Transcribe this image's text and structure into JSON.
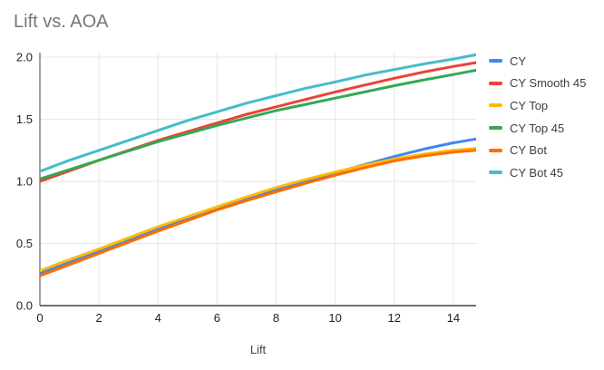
{
  "chart_data": {
    "type": "line",
    "title": "Lift vs. AOA",
    "xlabel": "Lift",
    "ylabel": "",
    "legend_position": "right",
    "grid": true,
    "xlim": [
      0,
      14.77
    ],
    "ylim": [
      0,
      2.0
    ],
    "x_tick_labels": [
      "0",
      "2",
      "4",
      "6",
      "8",
      "10",
      "12",
      "14"
    ],
    "x_ticks": [
      0,
      2,
      4,
      6,
      8,
      10,
      12,
      14
    ],
    "y_tick_labels": [
      "0.0",
      "0.5",
      "1.0",
      "1.5",
      "2.0"
    ],
    "y_ticks": [
      0,
      0.5,
      1.0,
      1.5,
      2.0
    ],
    "x": [
      0,
      1,
      2,
      3,
      4,
      5,
      6,
      7,
      8,
      9,
      10,
      11,
      12,
      13,
      14,
      15
    ],
    "series": [
      {
        "name": "CY",
        "color": "#4285F4",
        "values": [
          0.26,
          0.35,
          0.44,
          0.53,
          0.615,
          0.7,
          0.78,
          0.86,
          0.935,
          1.005,
          1.07,
          1.135,
          1.2,
          1.26,
          1.31,
          1.35
        ]
      },
      {
        "name": "CY Smooth 45",
        "color": "#EA4335",
        "values": [
          1.0,
          1.085,
          1.17,
          1.25,
          1.33,
          1.4,
          1.47,
          1.54,
          1.6,
          1.66,
          1.72,
          1.775,
          1.83,
          1.88,
          1.925,
          1.965
        ]
      },
      {
        "name": "CY Top",
        "color": "#FBBC04",
        "values": [
          0.28,
          0.37,
          0.455,
          0.545,
          0.635,
          0.715,
          0.795,
          0.875,
          0.95,
          1.015,
          1.075,
          1.13,
          1.18,
          1.22,
          1.25,
          1.27
        ]
      },
      {
        "name": "CY Top 45",
        "color": "#34A853",
        "values": [
          1.02,
          1.095,
          1.17,
          1.245,
          1.32,
          1.385,
          1.45,
          1.51,
          1.57,
          1.62,
          1.67,
          1.72,
          1.77,
          1.817,
          1.86,
          1.905
        ]
      },
      {
        "name": "CY Bot",
        "color": "#FF6D01",
        "values": [
          0.24,
          0.33,
          0.42,
          0.51,
          0.6,
          0.685,
          0.77,
          0.845,
          0.915,
          0.985,
          1.05,
          1.11,
          1.165,
          1.205,
          1.235,
          1.255
        ]
      },
      {
        "name": "CY Bot 45",
        "color": "#46BDC6",
        "values": [
          1.08,
          1.17,
          1.25,
          1.33,
          1.41,
          1.49,
          1.56,
          1.63,
          1.69,
          1.75,
          1.8,
          1.855,
          1.9,
          1.945,
          1.985,
          2.03
        ]
      }
    ],
    "colors": {
      "gridline": "#e6e6e6",
      "axis_line": "#424242",
      "tick_label": "#222222",
      "axis_title": "#424242",
      "title": "#757575",
      "background": "#ffffff"
    }
  }
}
